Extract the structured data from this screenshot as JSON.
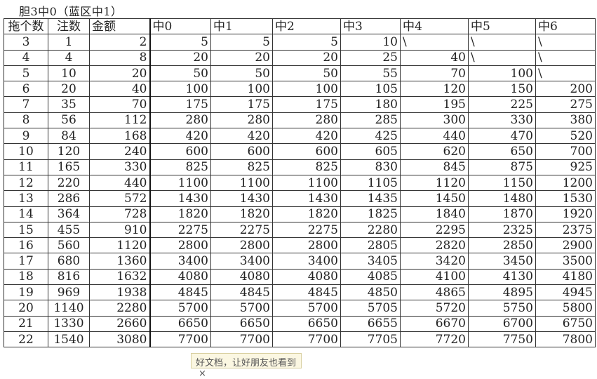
{
  "title": "胆3中0（蓝区中1）",
  "headers": [
    "拖个数",
    "注数",
    "金额",
    "中0",
    "中1",
    "中2",
    "中3",
    "中4",
    "中5",
    "中6"
  ],
  "rows": [
    [
      "3",
      "1",
      "2",
      "5",
      "5",
      "5",
      "10",
      "\\",
      "\\",
      "\\"
    ],
    [
      "4",
      "4",
      "8",
      "20",
      "20",
      "20",
      "25",
      "40",
      "\\",
      "\\"
    ],
    [
      "5",
      "10",
      "20",
      "50",
      "50",
      "50",
      "55",
      "70",
      "100",
      "\\"
    ],
    [
      "6",
      "20",
      "40",
      "100",
      "100",
      "100",
      "105",
      "120",
      "150",
      "200"
    ],
    [
      "7",
      "35",
      "70",
      "175",
      "175",
      "175",
      "180",
      "195",
      "225",
      "275"
    ],
    [
      "8",
      "56",
      "112",
      "280",
      "280",
      "280",
      "285",
      "300",
      "330",
      "380"
    ],
    [
      "9",
      "84",
      "168",
      "420",
      "420",
      "420",
      "425",
      "440",
      "470",
      "520"
    ],
    [
      "10",
      "120",
      "240",
      "600",
      "600",
      "600",
      "605",
      "620",
      "650",
      "700"
    ],
    [
      "11",
      "165",
      "330",
      "825",
      "825",
      "825",
      "830",
      "845",
      "875",
      "925"
    ],
    [
      "12",
      "220",
      "440",
      "1100",
      "1100",
      "1100",
      "1105",
      "1120",
      "1150",
      "1200"
    ],
    [
      "13",
      "286",
      "572",
      "1430",
      "1430",
      "1430",
      "1435",
      "1450",
      "1480",
      "1530"
    ],
    [
      "14",
      "364",
      "728",
      "1820",
      "1820",
      "1820",
      "1825",
      "1840",
      "1870",
      "1920"
    ],
    [
      "15",
      "455",
      "910",
      "2275",
      "2275",
      "2275",
      "2280",
      "2295",
      "2325",
      "2375"
    ],
    [
      "16",
      "560",
      "1120",
      "2800",
      "2800",
      "2800",
      "2805",
      "2820",
      "2850",
      "2900"
    ],
    [
      "17",
      "680",
      "1360",
      "3400",
      "3400",
      "3400",
      "3405",
      "3420",
      "3450",
      "3500"
    ],
    [
      "18",
      "816",
      "1632",
      "4080",
      "4080",
      "4080",
      "4085",
      "4100",
      "4130",
      "4180"
    ],
    [
      "19",
      "969",
      "1938",
      "4845",
      "4845",
      "4845",
      "4850",
      "4865",
      "4895",
      "4945"
    ],
    [
      "20",
      "1140",
      "2280",
      "5700",
      "5700",
      "5700",
      "5705",
      "5720",
      "5750",
      "5800"
    ],
    [
      "21",
      "1330",
      "2660",
      "6650",
      "6650",
      "6650",
      "6655",
      "6670",
      "6700",
      "6750"
    ],
    [
      "22",
      "1540",
      "3080",
      "7700",
      "7700",
      "7700",
      "7705",
      "7720",
      "7750",
      "7800"
    ]
  ],
  "popup": {
    "text": "好文档，让好朋友也看到",
    "close": "×"
  }
}
